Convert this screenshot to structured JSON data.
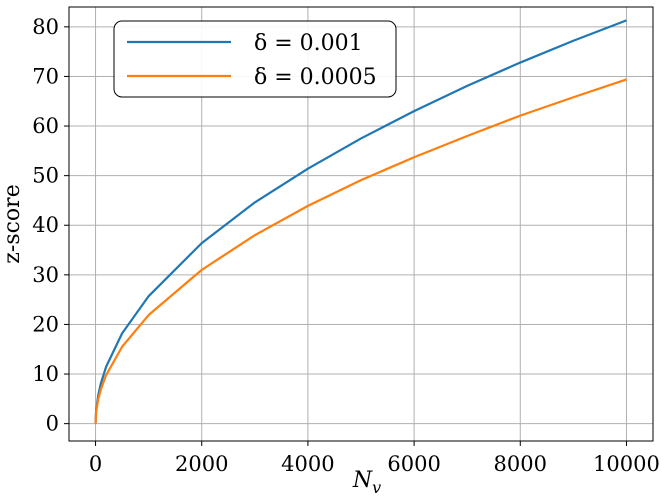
{
  "chart_data": {
    "type": "line",
    "title": "",
    "xlabel_base": "N",
    "xlabel_sub": "v",
    "ylabel": "z-score",
    "xlim": [
      -500,
      10500
    ],
    "ylim": [
      -3.5,
      84
    ],
    "xticks": [
      0,
      2000,
      4000,
      6000,
      8000,
      10000
    ],
    "xtick_labels": [
      "0",
      "2000",
      "4000",
      "6000",
      "8000",
      "10000"
    ],
    "yticks": [
      0,
      10,
      20,
      30,
      40,
      50,
      60,
      70,
      80
    ],
    "ytick_labels": [
      "0",
      "10",
      "20",
      "30",
      "40",
      "50",
      "60",
      "70",
      "80"
    ],
    "grid": true,
    "legend_position": "upper-left",
    "series": [
      {
        "name": "δ = 0.001",
        "color": "#1f77b4",
        "x": [
          0,
          10,
          50,
          100,
          200,
          500,
          1000,
          2000,
          3000,
          4000,
          5000,
          6000,
          7000,
          8000,
          9000,
          10000
        ],
        "y": [
          0,
          2.6,
          5.7,
          8.1,
          11.5,
          18.2,
          25.7,
          36.4,
          44.6,
          51.4,
          57.5,
          63.0,
          68.1,
          72.8,
          77.2,
          81.3
        ]
      },
      {
        "name": "δ = 0.0005",
        "color": "#ff7f0e",
        "x": [
          0,
          10,
          50,
          100,
          200,
          500,
          1000,
          2000,
          3000,
          4000,
          5000,
          6000,
          7000,
          8000,
          9000,
          10000
        ],
        "y": [
          0,
          2.2,
          4.9,
          6.9,
          9.8,
          15.5,
          21.9,
          31.0,
          38.0,
          43.9,
          49.1,
          53.7,
          58.0,
          62.1,
          65.8,
          69.4
        ]
      }
    ]
  }
}
